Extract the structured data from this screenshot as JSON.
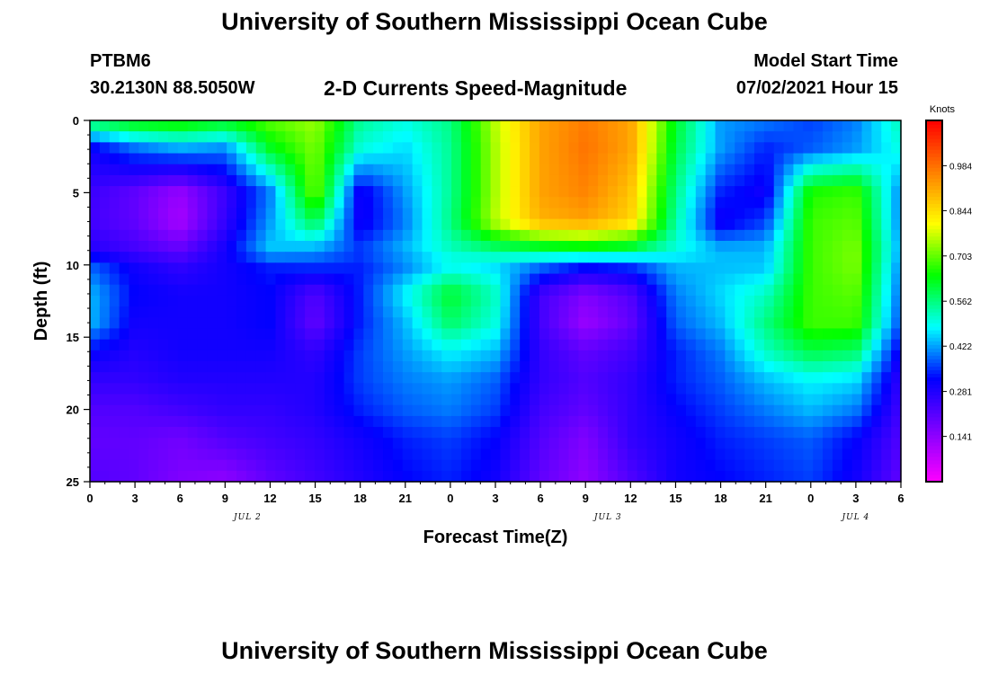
{
  "page": {
    "title_top": "University of Southern Mississippi Ocean Cube",
    "title_bottom": "University of Southern Mississippi Ocean Cube",
    "station_id": "PTBM6",
    "station_coords": "30.2130N  88.5050W",
    "plot_subtitle": "2-D Currents Speed-Magnitude",
    "model_start_label": "Model Start Time",
    "model_start_value": "07/02/2021 Hour 15"
  },
  "chart_data": {
    "type": "heatmap",
    "title": "2-D Currents Speed-Magnitude",
    "xlabel": "Forecast Time(Z)",
    "ylabel": "Depth (ft)",
    "x_tick_labels": [
      "0",
      "3",
      "6",
      "9",
      "12",
      "15",
      "18",
      "21",
      "0",
      "3",
      "6",
      "9",
      "12",
      "15",
      "18",
      "21",
      "0",
      "3",
      "6"
    ],
    "x_range_hours": [
      0,
      54
    ],
    "y_ticks": [
      0,
      5,
      10,
      15,
      20,
      25
    ],
    "ylim": [
      0,
      25
    ],
    "y_inverted": true,
    "day_labels": [
      {
        "text": "JUL 2",
        "hour": 10.5
      },
      {
        "text": "JUL 3",
        "hour": 34.5
      },
      {
        "text": "JUL 4",
        "hour": 51
      }
    ],
    "colorbar": {
      "unit_label": "Knots",
      "ticks": [
        "0.984",
        "0.844",
        "0.703",
        "0.562",
        "0.422",
        "0.281",
        "0.141"
      ],
      "tick_values": [
        0.984,
        0.844,
        0.703,
        0.562,
        0.422,
        0.281,
        0.141
      ],
      "vmin": 0.0,
      "vmax": 1.125,
      "palette_low_to_high": [
        "#ff00ff",
        "#8000ff",
        "#0000ff",
        "#00ffff",
        "#00ff00",
        "#ffff00",
        "#ff8000",
        "#ff0000"
      ]
    },
    "speed_field": {
      "hours": [
        0,
        3,
        6,
        9,
        12,
        15,
        18,
        21,
        24,
        27,
        30,
        33,
        36,
        39,
        42,
        45,
        48,
        51,
        54
      ],
      "depths": [
        0,
        2,
        5,
        7,
        9,
        10,
        12,
        14,
        16,
        18,
        20,
        22,
        25
      ],
      "values": [
        [
          0.6,
          0.66,
          0.68,
          0.64,
          0.7,
          0.74,
          0.55,
          0.5,
          0.56,
          0.76,
          0.92,
          0.97,
          0.92,
          0.62,
          0.42,
          0.4,
          0.36,
          0.4,
          0.53
        ],
        [
          0.3,
          0.38,
          0.42,
          0.4,
          0.62,
          0.72,
          0.5,
          0.46,
          0.55,
          0.75,
          0.92,
          0.98,
          0.92,
          0.6,
          0.42,
          0.34,
          0.38,
          0.42,
          0.5
        ],
        [
          0.25,
          0.2,
          0.13,
          0.25,
          0.4,
          0.72,
          0.3,
          0.42,
          0.55,
          0.75,
          0.92,
          0.96,
          0.88,
          0.56,
          0.34,
          0.3,
          0.66,
          0.68,
          0.4
        ],
        [
          0.24,
          0.2,
          0.11,
          0.26,
          0.42,
          0.6,
          0.3,
          0.4,
          0.56,
          0.76,
          0.9,
          0.92,
          0.86,
          0.54,
          0.3,
          0.36,
          0.68,
          0.7,
          0.4
        ],
        [
          0.28,
          0.24,
          0.2,
          0.3,
          0.45,
          0.42,
          0.36,
          0.44,
          0.52,
          0.56,
          0.58,
          0.6,
          0.58,
          0.5,
          0.44,
          0.44,
          0.68,
          0.72,
          0.42
        ],
        [
          0.38,
          0.3,
          0.26,
          0.3,
          0.34,
          0.36,
          0.34,
          0.4,
          0.48,
          0.46,
          0.4,
          0.34,
          0.36,
          0.44,
          0.44,
          0.44,
          0.68,
          0.72,
          0.4
        ],
        [
          0.44,
          0.32,
          0.3,
          0.3,
          0.32,
          0.22,
          0.34,
          0.48,
          0.62,
          0.52,
          0.24,
          0.16,
          0.22,
          0.4,
          0.46,
          0.52,
          0.68,
          0.7,
          0.38
        ],
        [
          0.44,
          0.3,
          0.3,
          0.3,
          0.32,
          0.2,
          0.34,
          0.44,
          0.58,
          0.5,
          0.24,
          0.13,
          0.2,
          0.38,
          0.44,
          0.56,
          0.68,
          0.68,
          0.36
        ],
        [
          0.32,
          0.28,
          0.3,
          0.3,
          0.3,
          0.26,
          0.36,
          0.42,
          0.48,
          0.44,
          0.26,
          0.2,
          0.24,
          0.34,
          0.4,
          0.52,
          0.6,
          0.58,
          0.3
        ],
        [
          0.26,
          0.26,
          0.28,
          0.28,
          0.28,
          0.28,
          0.36,
          0.4,
          0.42,
          0.38,
          0.26,
          0.22,
          0.26,
          0.34,
          0.38,
          0.44,
          0.48,
          0.46,
          0.26
        ],
        [
          0.22,
          0.22,
          0.24,
          0.26,
          0.26,
          0.28,
          0.34,
          0.38,
          0.4,
          0.36,
          0.24,
          0.2,
          0.26,
          0.32,
          0.36,
          0.4,
          0.44,
          0.4,
          0.24
        ],
        [
          0.2,
          0.2,
          0.18,
          0.22,
          0.24,
          0.26,
          0.3,
          0.34,
          0.36,
          0.32,
          0.22,
          0.16,
          0.26,
          0.3,
          0.34,
          0.36,
          0.38,
          0.32,
          0.22
        ],
        [
          0.22,
          0.2,
          0.16,
          0.14,
          0.2,
          0.24,
          0.28,
          0.32,
          0.34,
          0.3,
          0.2,
          0.14,
          0.22,
          0.3,
          0.32,
          0.34,
          0.36,
          0.3,
          0.2
        ]
      ]
    }
  }
}
